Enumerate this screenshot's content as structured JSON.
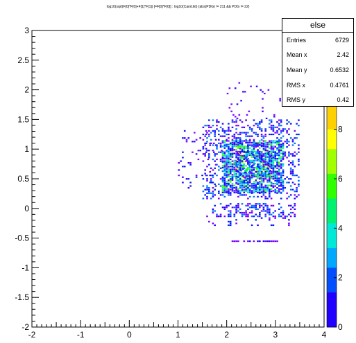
{
  "chart_data": {
    "type": "heatmap",
    "title": "log10(sqrt(F[0]*F[0]+F[1]*F[1]) [=F[0]*F[0]] : log10(Cand.Et) {abs(PDG) != 211 && PDG != 22}",
    "xlim": [
      -2,
      4
    ],
    "ylim": [
      -2,
      3
    ],
    "x_ticks": [
      "-2",
      "-1",
      "0",
      "1",
      "2",
      "3",
      "4"
    ],
    "y_ticks": [
      "-2",
      "-1.5",
      "-1",
      "-0.5",
      "0",
      "0.5",
      "1",
      "1.5",
      "2",
      "2.5",
      "3"
    ],
    "colorbar": {
      "range": [
        0,
        12
      ],
      "ticks": [
        "0",
        "2",
        "4",
        "6",
        "8",
        "10"
      ]
    },
    "stats": {
      "title": "else",
      "rows": [
        {
          "label": "Entries",
          "value": "6729"
        },
        {
          "label": "Mean x",
          "value": "2.42"
        },
        {
          "label": "Mean y",
          "value": "0.6532"
        },
        {
          "label": "RMS x",
          "value": "0.4761"
        },
        {
          "label": "RMS y",
          "value": "0.42"
        }
      ]
    },
    "grid": false,
    "legend": "top-right"
  }
}
